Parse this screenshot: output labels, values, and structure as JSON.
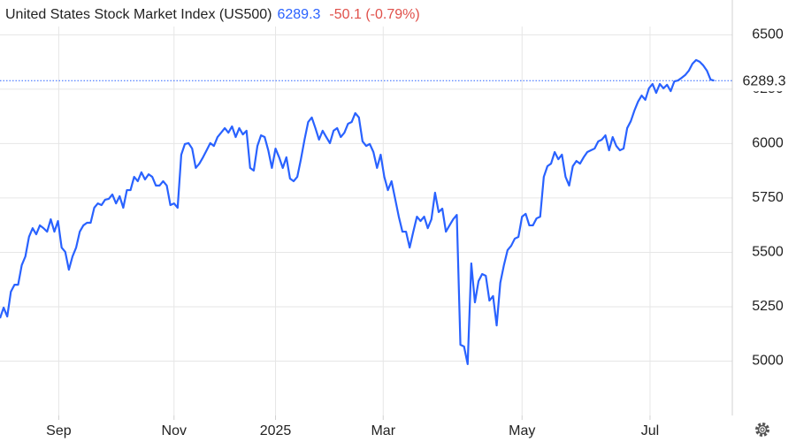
{
  "chart_data": {
    "type": "line",
    "title": "United States Stock Market Index (US500)",
    "change": "-50.1 (-0.79%)",
    "color": "#2962ff",
    "values": [
      5197,
      5246,
      5205,
      5319,
      5351,
      5351,
      5441,
      5481,
      5571,
      5611,
      5583,
      5624,
      5611,
      5595,
      5652,
      5595,
      5644,
      5522,
      5502,
      5420,
      5481,
      5522,
      5595,
      5624,
      5636,
      5636,
      5705,
      5725,
      5717,
      5742,
      5746,
      5766,
      5725,
      5758,
      5705,
      5786,
      5786,
      5847,
      5827,
      5868,
      5835,
      5859,
      5847,
      5807,
      5807,
      5827,
      5807,
      5717,
      5725,
      5705,
      5949,
      5998,
      6002,
      5977,
      5888,
      5908,
      5937,
      5969,
      6002,
      5989,
      6030,
      6050,
      6071,
      6050,
      6079,
      6030,
      6071,
      6042,
      6059,
      5888,
      5876,
      5989,
      6038,
      6030,
      5969,
      5888,
      5977,
      5937,
      5888,
      5937,
      5839,
      5827,
      5847,
      5928,
      6018,
      6099,
      6120,
      6071,
      6018,
      6059,
      6030,
      6002,
      6059,
      6071,
      6030,
      6050,
      6091,
      6099,
      6140,
      6120,
      6010,
      5989,
      5998,
      5961,
      5888,
      5949,
      5847,
      5786,
      5827,
      5746,
      5664,
      5595,
      5595,
      5522,
      5595,
      5664,
      5644,
      5664,
      5611,
      5652,
      5774,
      5685,
      5701,
      5595,
      5624,
      5652,
      5672,
      5075,
      5067,
      4986,
      5449,
      5270,
      5368,
      5400,
      5392,
      5278,
      5299,
      5164,
      5360,
      5441,
      5510,
      5530,
      5563,
      5571,
      5664,
      5677,
      5624,
      5624,
      5656,
      5664,
      5847,
      5896,
      5908,
      5961,
      5928,
      5949,
      5847,
      5807,
      5896,
      5920,
      5908,
      5937,
      5961,
      5969,
      5977,
      6010,
      6018,
      6038,
      5969,
      6030,
      5989,
      5969,
      5977,
      6071,
      6103,
      6152,
      6193,
      6221,
      6201,
      6254,
      6274,
      6233,
      6274,
      6254,
      6270,
      6241,
      6286,
      6290,
      6302,
      6315,
      6335,
      6367,
      6384,
      6376,
      6359,
      6335,
      6294,
      6289.3
    ],
    "xlim": [
      0,
      202
    ],
    "xticks": [
      {
        "value": 16.2,
        "label": "Sep"
      },
      {
        "value": 48,
        "label": "Nov"
      },
      {
        "value": 76,
        "label": "2025"
      },
      {
        "value": 105.7,
        "label": "Mar"
      },
      {
        "value": 144,
        "label": "May"
      },
      {
        "value": 179.3,
        "label": "Jul"
      }
    ],
    "ylim": [
      4750,
      6660
    ],
    "yticks": [
      5000,
      5250,
      5500,
      5750,
      6000,
      6250,
      6500
    ],
    "grid": true
  }
}
